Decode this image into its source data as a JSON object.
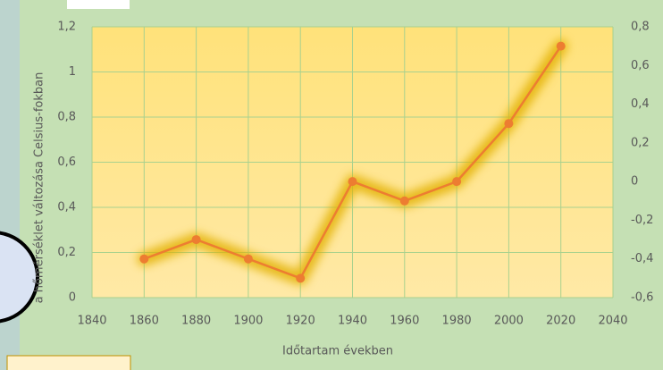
{
  "chart_data": {
    "type": "line",
    "x_label": "Időtartam években",
    "y_label": "a hőmérséklet változása Celsius-fokban",
    "xlim": [
      1840,
      2040
    ],
    "xticks": [
      1840,
      1860,
      1880,
      1900,
      1920,
      1940,
      1960,
      1980,
      2000,
      2020,
      2040
    ],
    "ylim": [
      0,
      1.2
    ],
    "yticks": [
      0,
      {
        "value": 0.2,
        "label": "0,2"
      },
      {
        "value": 0.4,
        "label": "0,4"
      },
      {
        "value": 0.6,
        "label": "0,6"
      },
      {
        "value": 0.8,
        "label": "0,8"
      },
      1,
      {
        "value": 1.2,
        "label": "1,2"
      }
    ],
    "y2lim": [
      -0.6,
      0.8
    ],
    "y2ticks": [
      {
        "value": -0.6,
        "label": "-0,6"
      },
      {
        "value": -0.4,
        "label": "-0,4"
      },
      {
        "value": -0.2,
        "label": "-0,2"
      },
      0,
      {
        "value": 0.2,
        "label": "0,2"
      },
      {
        "value": 0.4,
        "label": "0,4"
      },
      {
        "value": 0.6,
        "label": "0,6"
      },
      {
        "value": 0.8,
        "label": "0,8"
      }
    ],
    "x": [
      1860,
      1880,
      1900,
      1920,
      1940,
      1960,
      1980,
      2000,
      2020
    ],
    "series": [
      {
        "color": "#ed7d31",
        "axis": "y2",
        "values": [
          -0.4,
          -0.3,
          -0.4,
          -0.5,
          0.0,
          -0.1,
          0.0,
          0.3,
          0.7
        ]
      }
    ],
    "grid": true
  }
}
